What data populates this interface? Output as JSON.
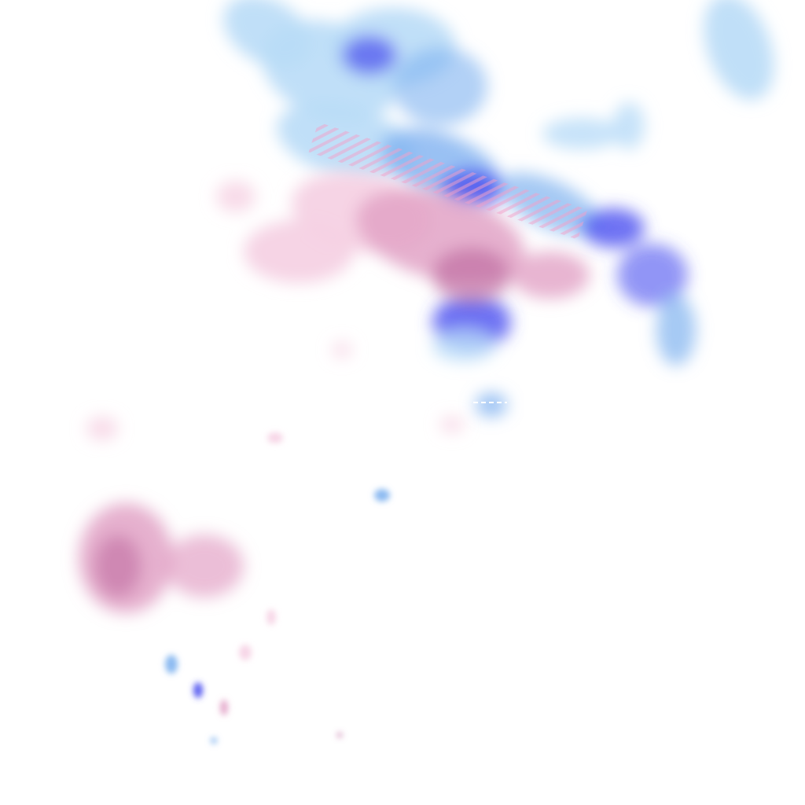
{
  "map": {
    "colors": {
      "rain_light": "#b9dcf7",
      "rain_medium": "#7fb2f0",
      "rain_heavy": "#4a4ff0",
      "mix_light": "#f6d2e4",
      "mix_medium": "#e2a2c6",
      "mix_heavy": "#c06ea2",
      "background": "#ffffff"
    }
  }
}
